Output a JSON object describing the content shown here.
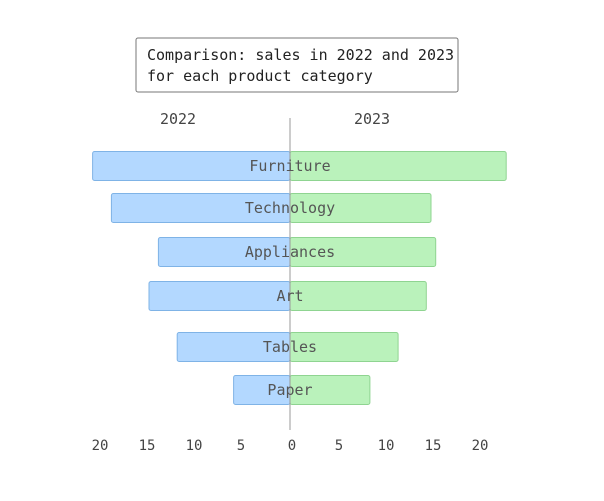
{
  "chart_data": {
    "type": "bar",
    "orientation": "horizontal-diverging",
    "title_lines": [
      "Comparison: sales in 2022 and 2023",
      "for each product category"
    ],
    "categories": [
      "Furniture",
      "Technology",
      "Appliances",
      "Art",
      "Tables",
      "Paper"
    ],
    "series": [
      {
        "name": "2022",
        "side": "left",
        "color": "#b3d8ff",
        "stroke": "#7fb3e6",
        "values": [
          21,
          19,
          14,
          15,
          12,
          6
        ]
      },
      {
        "name": "2023",
        "side": "right",
        "color": "#baf2bb",
        "stroke": "#8fd491",
        "values": [
          23,
          15,
          15.5,
          14.5,
          11.5,
          8.5
        ]
      }
    ],
    "xlim": [
      -20,
      20
    ],
    "left_ticks": [
      20,
      15,
      10,
      5
    ],
    "right_ticks": [
      0,
      5,
      10,
      15,
      20
    ],
    "grid": false
  }
}
